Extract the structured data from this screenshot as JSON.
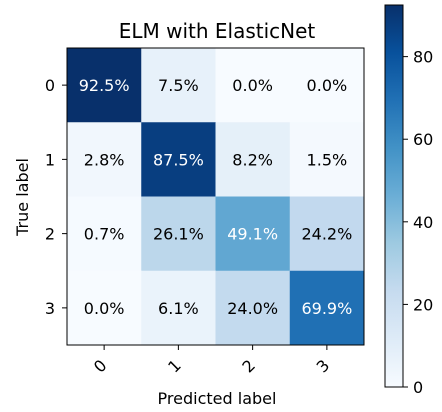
{
  "chart_data": {
    "type": "heatmap",
    "title": "ELM with ElasticNet",
    "xlabel": "Predicted label",
    "ylabel": "True label",
    "x_categories": [
      "0",
      "1",
      "2",
      "3"
    ],
    "y_categories": [
      "0",
      "1",
      "2",
      "3"
    ],
    "values": [
      [
        92.5,
        7.5,
        0.0,
        0.0
      ],
      [
        2.8,
        87.5,
        8.2,
        1.5
      ],
      [
        0.7,
        26.1,
        49.1,
        24.2
      ],
      [
        0.0,
        6.1,
        24.0,
        69.9
      ]
    ],
    "cell_labels": [
      [
        "92.5%",
        "7.5%",
        "0.0%",
        "0.0%"
      ],
      [
        "2.8%",
        "87.5%",
        "8.2%",
        "1.5%"
      ],
      [
        "0.7%",
        "26.1%",
        "49.1%",
        "24.2%"
      ],
      [
        "0.0%",
        "6.1%",
        "24.0%",
        "69.9%"
      ]
    ],
    "colorbar": {
      "ticks": [
        0,
        20,
        40,
        60,
        80
      ],
      "tick_labels": [
        "0",
        "20",
        "40",
        "60",
        "80"
      ],
      "range": [
        0,
        92.5
      ],
      "colormap": "Blues"
    }
  }
}
